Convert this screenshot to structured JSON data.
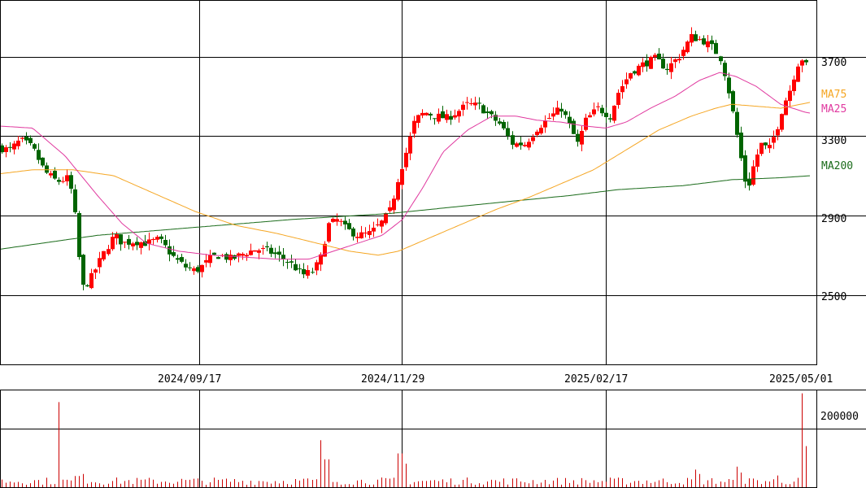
{
  "chart_data": {
    "type": "candlestick",
    "title": "",
    "xlabel": "",
    "ylabel": "",
    "ylim": [
      2150,
      3985
    ],
    "y_ticks": [
      2500,
      2900,
      3300,
      3700
    ],
    "y_tick_labels": [
      "2500",
      "2900",
      "3300",
      "3700"
    ],
    "x_tick_labels": [
      "2024/09/17",
      "2024/11/29",
      "2025/02/17",
      "2025/05/01"
    ],
    "grid": true,
    "legend_position": "right",
    "colors": {
      "up": "#ff0000",
      "down": "#006400",
      "ma25": "#e0399f",
      "ma75": "#f5a623",
      "ma200": "#1a6b1a",
      "volume": "#cc0000",
      "grid": "#000000"
    },
    "series": [
      {
        "name": "MA75",
        "label_value": 3520
      },
      {
        "name": "MA25",
        "label_value": 3445
      },
      {
        "name": "MA200",
        "label_value": 3140
      }
    ],
    "anchors": {
      "close": [
        [
          0,
          3240
        ],
        [
          12,
          3230
        ],
        [
          25,
          3280
        ],
        [
          40,
          3240
        ],
        [
          55,
          3120
        ],
        [
          70,
          3070
        ],
        [
          85,
          3090
        ],
        [
          95,
          2830
        ],
        [
          100,
          2530
        ],
        [
          110,
          2570
        ],
        [
          120,
          2650
        ],
        [
          130,
          2730
        ],
        [
          140,
          2800
        ],
        [
          150,
          2760
        ],
        [
          165,
          2770
        ],
        [
          180,
          2760
        ],
        [
          195,
          2780
        ],
        [
          205,
          2730
        ],
        [
          215,
          2680
        ],
        [
          228,
          2640
        ],
        [
          240,
          2620
        ],
        [
          250,
          2650
        ],
        [
          260,
          2690
        ],
        [
          270,
          2700
        ],
        [
          285,
          2680
        ],
        [
          300,
          2710
        ],
        [
          315,
          2730
        ],
        [
          330,
          2720
        ],
        [
          345,
          2690
        ],
        [
          360,
          2650
        ],
        [
          372,
          2600
        ],
        [
          385,
          2620
        ],
        [
          395,
          2700
        ],
        [
          402,
          2850
        ],
        [
          415,
          2880
        ],
        [
          425,
          2830
        ],
        [
          440,
          2800
        ],
        [
          455,
          2810
        ],
        [
          470,
          2870
        ],
        [
          480,
          2930
        ],
        [
          490,
          3100
        ],
        [
          500,
          3230
        ],
        [
          510,
          3380
        ],
        [
          522,
          3420
        ],
        [
          535,
          3400
        ],
        [
          550,
          3390
        ],
        [
          565,
          3430
        ],
        [
          575,
          3460
        ],
        [
          590,
          3450
        ],
        [
          600,
          3410
        ],
        [
          615,
          3360
        ],
        [
          630,
          3260
        ],
        [
          645,
          3260
        ],
        [
          660,
          3340
        ],
        [
          680,
          3410
        ],
        [
          690,
          3440
        ],
        [
          700,
          3350
        ],
        [
          710,
          3260
        ],
        [
          720,
          3380
        ],
        [
          735,
          3440
        ],
        [
          750,
          3400
        ],
        [
          760,
          3520
        ],
        [
          775,
          3620
        ],
        [
          790,
          3660
        ],
        [
          805,
          3690
        ],
        [
          820,
          3640
        ],
        [
          835,
          3700
        ],
        [
          850,
          3800
        ],
        [
          865,
          3780
        ],
        [
          875,
          3750
        ],
        [
          885,
          3700
        ],
        [
          893,
          3580
        ],
        [
          900,
          3430
        ],
        [
          908,
          3250
        ],
        [
          915,
          3080
        ],
        [
          920,
          3050
        ],
        [
          926,
          3150
        ],
        [
          935,
          3260
        ],
        [
          945,
          3230
        ],
        [
          955,
          3340
        ],
        [
          963,
          3460
        ],
        [
          970,
          3520
        ],
        [
          980,
          3660
        ],
        [
          988,
          3700
        ],
        [
          992,
          3640
        ],
        [
          997,
          3720
        ]
      ],
      "ma25": [
        [
          0,
          3350
        ],
        [
          40,
          3340
        ],
        [
          80,
          3200
        ],
        [
          120,
          3000
        ],
        [
          150,
          2860
        ],
        [
          180,
          2760
        ],
        [
          220,
          2720
        ],
        [
          260,
          2700
        ],
        [
          300,
          2690
        ],
        [
          340,
          2680
        ],
        [
          380,
          2680
        ],
        [
          410,
          2720
        ],
        [
          440,
          2760
        ],
        [
          470,
          2800
        ],
        [
          495,
          2880
        ],
        [
          520,
          3040
        ],
        [
          545,
          3220
        ],
        [
          575,
          3330
        ],
        [
          605,
          3400
        ],
        [
          635,
          3400
        ],
        [
          660,
          3380
        ],
        [
          690,
          3370
        ],
        [
          720,
          3350
        ],
        [
          745,
          3340
        ],
        [
          770,
          3370
        ],
        [
          800,
          3440
        ],
        [
          830,
          3500
        ],
        [
          860,
          3580
        ],
        [
          885,
          3620
        ],
        [
          905,
          3600
        ],
        [
          930,
          3550
        ],
        [
          960,
          3460
        ],
        [
          990,
          3420
        ],
        [
          997,
          3415
        ]
      ],
      "ma75": [
        [
          0,
          3110
        ],
        [
          40,
          3130
        ],
        [
          90,
          3130
        ],
        [
          140,
          3100
        ],
        [
          190,
          3010
        ],
        [
          240,
          2920
        ],
        [
          290,
          2850
        ],
        [
          340,
          2810
        ],
        [
          390,
          2760
        ],
        [
          430,
          2720
        ],
        [
          465,
          2700
        ],
        [
          490,
          2720
        ],
        [
          530,
          2790
        ],
        [
          570,
          2860
        ],
        [
          610,
          2930
        ],
        [
          650,
          2990
        ],
        [
          690,
          3060
        ],
        [
          730,
          3130
        ],
        [
          770,
          3230
        ],
        [
          810,
          3330
        ],
        [
          850,
          3400
        ],
        [
          880,
          3440
        ],
        [
          900,
          3460
        ],
        [
          930,
          3450
        ],
        [
          960,
          3440
        ],
        [
          997,
          3470
        ]
      ],
      "ma200": [
        [
          0,
          2730
        ],
        [
          120,
          2800
        ],
        [
          240,
          2840
        ],
        [
          360,
          2880
        ],
        [
          480,
          2910
        ],
        [
          600,
          2960
        ],
        [
          700,
          3000
        ],
        [
          760,
          3030
        ],
        [
          840,
          3050
        ],
        [
          900,
          3080
        ],
        [
          960,
          3090
        ],
        [
          997,
          3100
        ]
      ]
    },
    "volume": {
      "ylim": [
        0,
        330000
      ],
      "y_ticks": [
        200000
      ],
      "y_tick_labels": [
        "200000"
      ],
      "base_level": 16000,
      "spikes": [
        [
          72,
          290000
        ],
        [
          95,
          38000
        ],
        [
          102,
          45000
        ],
        [
          397,
          160000
        ],
        [
          402,
          95000
        ],
        [
          488,
          140000
        ],
        [
          492,
          115000
        ],
        [
          500,
          80000
        ],
        [
          855,
          60000
        ],
        [
          862,
          45000
        ],
        [
          905,
          70000
        ],
        [
          912,
          50000
        ],
        [
          958,
          40000
        ],
        [
          988,
          320000
        ],
        [
          992,
          140000
        ],
        [
          997,
          80000
        ]
      ]
    }
  }
}
